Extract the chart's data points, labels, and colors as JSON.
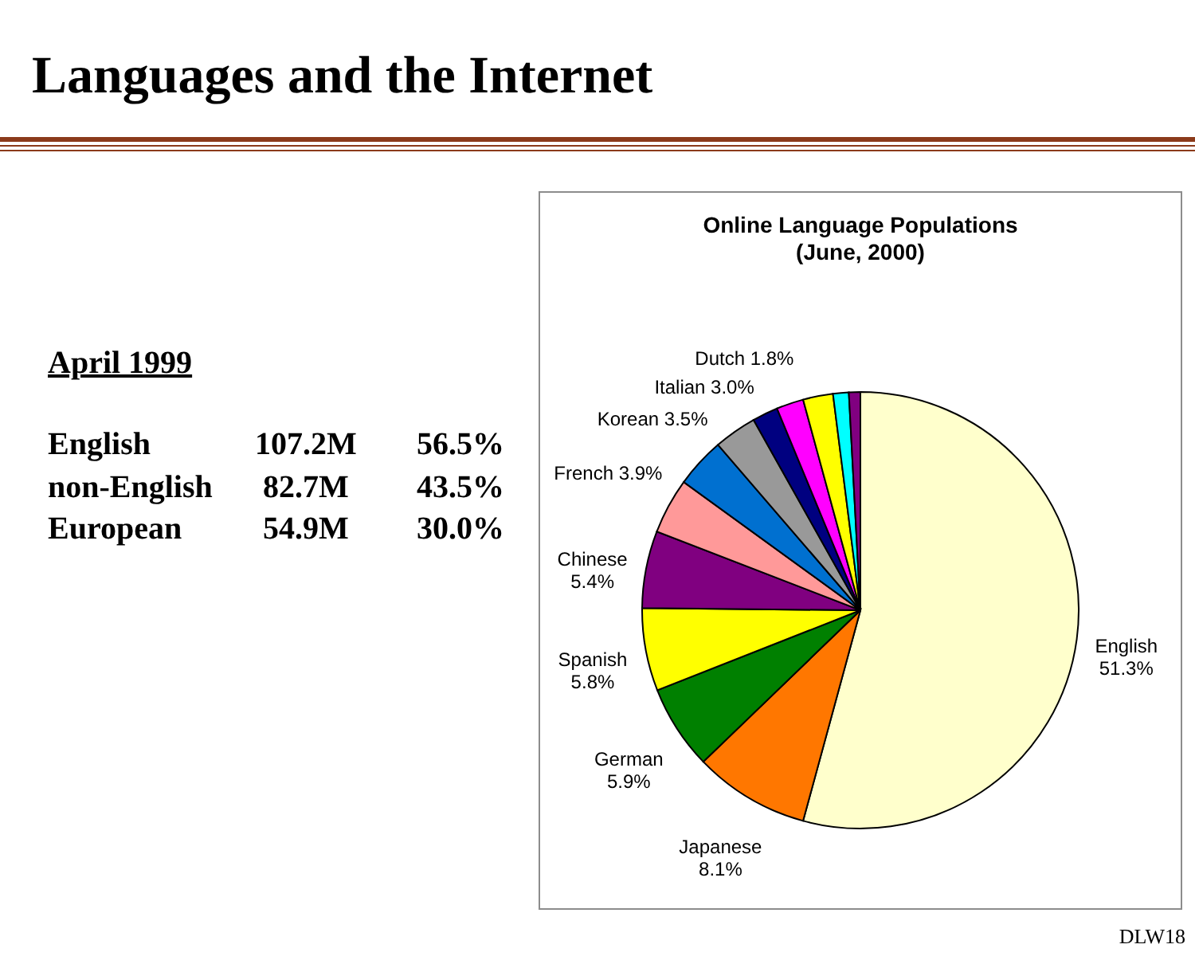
{
  "chart_data": [
    {
      "type": "other",
      "title": "Languages and the Internet",
      "subtitle": "April 1999",
      "categories": [
        "English",
        "non-English",
        "European"
      ],
      "annotations": [
        "107.2M",
        "56.5%",
        "82.7M",
        "43.5%",
        "54.9M",
        "30.0%",
        "DLW18"
      ]
    },
    {
      "type": "pie",
      "title": "Online Language Populations",
      "subtitle": "(June, 2000)",
      "categories": [
        "English",
        "Japanese",
        "German",
        "Spanish",
        "Chinese",
        "French",
        "Korean",
        "Italian",
        "Dutch",
        null,
        null,
        null,
        null
      ],
      "values": [
        51.3,
        8.1,
        5.9,
        5.8,
        5.4,
        3.9,
        3.5,
        3.0,
        1.8,
        1.9,
        2.1,
        1.1,
        0.8
      ],
      "value_labels": [
        "51.3%",
        "8.1%",
        "5.9%",
        "5.8%",
        "5.4%",
        "3.9%",
        "3.5%",
        "3.0%",
        "1.8%",
        null,
        null,
        null,
        null
      ],
      "colors": [
        "#ffffcc",
        "#ff7700",
        "#008000",
        "#ffff00",
        "#800080",
        "#ff9999",
        "#0070d0",
        "#999999",
        "#000080",
        "#ff00ff",
        "#ffff00",
        "#00ffff",
        "#800080"
      ]
    }
  ]
}
